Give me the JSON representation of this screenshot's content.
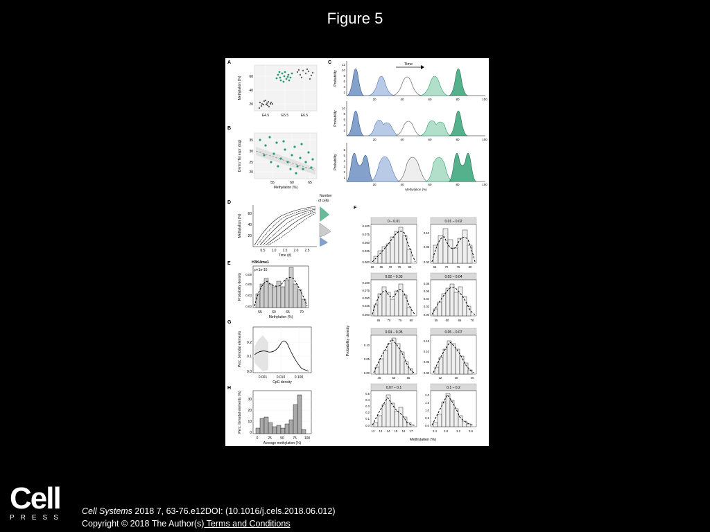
{
  "title": "Figure 5",
  "citation": {
    "journal": "Cell Systems",
    "details": " 2018 7, 63-76.e12DOI: (10.1016/j.cels.2018.06.012)"
  },
  "copyright": {
    "text": "Copyright © 2018 The Author(s)",
    "link": " Terms and Conditions"
  },
  "logo": {
    "main": "Cell",
    "sub": "PRESS"
  },
  "colors": {
    "background": "#000000",
    "figure_bg": "#ffffff",
    "blue": "#4e79b3",
    "teal": "#2a9d6e",
    "gray": "#808080"
  },
  "figure": {
    "panel_labels": [
      "A",
      "B",
      "C",
      "D",
      "E",
      "F",
      "G",
      "H"
    ],
    "A": {
      "ylabel": "Methylation (%)",
      "yticks": [
        "60",
        "40",
        "20"
      ],
      "xticks": [
        "E4.5",
        "E5.5",
        "E6.5"
      ]
    },
    "B": {
      "ylabel": "Dnmt / Tet expr. (log)",
      "yticks": [
        "35",
        "30",
        "25",
        "20"
      ],
      "xticks": [
        "55",
        "60",
        "65"
      ],
      "xlabel": "Methylation (%)"
    },
    "C": {
      "time_label": "Time",
      "ylabel": "Probability",
      "xlabel": "Methylation (%)",
      "yticks_1": [
        "12",
        "10",
        "8",
        "6",
        "4",
        "2"
      ],
      "yticks_2": [
        "10",
        "8",
        "6",
        "4",
        "2"
      ],
      "yticks_3": [
        "6",
        "5",
        "4",
        "3",
        "2",
        "1"
      ],
      "xticks": [
        "20",
        "40",
        "60",
        "80",
        "100"
      ]
    },
    "D": {
      "ylabel": "Methylation (%)",
      "yticks": [
        "60",
        "40",
        "20"
      ],
      "xticks": [
        "0.5",
        "1.0",
        "1.5",
        "2.0",
        "2.5"
      ],
      "xlabel": "Time (d)",
      "side_label_1": "Number",
      "side_label_2": "of cells"
    },
    "E": {
      "title": "H3K4me1",
      "pvalue": "p<1e-16",
      "ylabel": "Probability density",
      "yticks": [
        "0.09",
        "0.06",
        "0.03",
        "0.00"
      ],
      "xticks": [
        "55",
        "60",
        "65",
        "70"
      ],
      "xlabel": "Methylation (%)"
    },
    "F": {
      "ylabel": "Probability density",
      "xlabel": "Methylation (%)",
      "panels": [
        {
          "label": "0 – 0.01",
          "yticks": [
            "0.100",
            "0.075",
            "0.050",
            "0.025",
            "0.000"
          ],
          "xticks": [
            "60",
            "65",
            "70",
            "75",
            "80"
          ]
        },
        {
          "label": "0.01 – 0.02",
          "yticks": [
            "0.10",
            "0.05",
            "0.00"
          ],
          "xticks": [
            "65",
            "70",
            "75",
            "80"
          ]
        },
        {
          "label": "0.02 – 0.03",
          "yticks": [
            "0.100",
            "0.075",
            "0.050",
            "0.025",
            "0.000"
          ],
          "xticks": [
            "65",
            "70",
            "75",
            "80"
          ]
        },
        {
          "label": "0.03 – 0.04",
          "yticks": [
            "0.08",
            "0.06",
            "0.04",
            "0.02",
            "0.00"
          ],
          "xticks": [
            "55",
            "60",
            "65",
            "70"
          ]
        },
        {
          "label": "0.04 – 0.05",
          "yticks": [
            "0.10",
            "0.05",
            "0.00"
          ],
          "xticks": [
            "45",
            "50",
            "55"
          ]
        },
        {
          "label": "0.05 – 0.07",
          "yticks": [
            "0.15",
            "0.10",
            "0.05",
            "0.00"
          ],
          "xticks": [
            "32",
            "36",
            "40"
          ]
        },
        {
          "label": "0.07 – 0.1",
          "yticks": [
            "0.5",
            "0.4",
            "0.3",
            "0.2",
            "0.1",
            "0.0"
          ],
          "xticks": [
            "12",
            "13",
            "14",
            "15",
            "16",
            "17"
          ]
        },
        {
          "label": "0.1 – 0.2",
          "yticks": [
            "2.0",
            "1.5",
            "1.0",
            "0.5",
            "0.0"
          ],
          "xticks": [
            "2.4",
            "2.8",
            "3.2",
            "3.6"
          ]
        }
      ]
    },
    "G": {
      "ylabel": "Perc. bimodal elements",
      "yticks": [
        "0.2",
        "0.1",
        "0.0"
      ],
      "xticks": [
        "0.001",
        "0.010",
        "0.100"
      ],
      "xlabel": "CpG density"
    },
    "H": {
      "ylabel": "Perc. bimodal elements (%)",
      "yticks": [
        "30",
        "20",
        "10",
        "0"
      ],
      "xticks": [
        "0",
        "25",
        "50",
        "75",
        "100"
      ],
      "xlabel": "Average methylation (%)"
    }
  }
}
